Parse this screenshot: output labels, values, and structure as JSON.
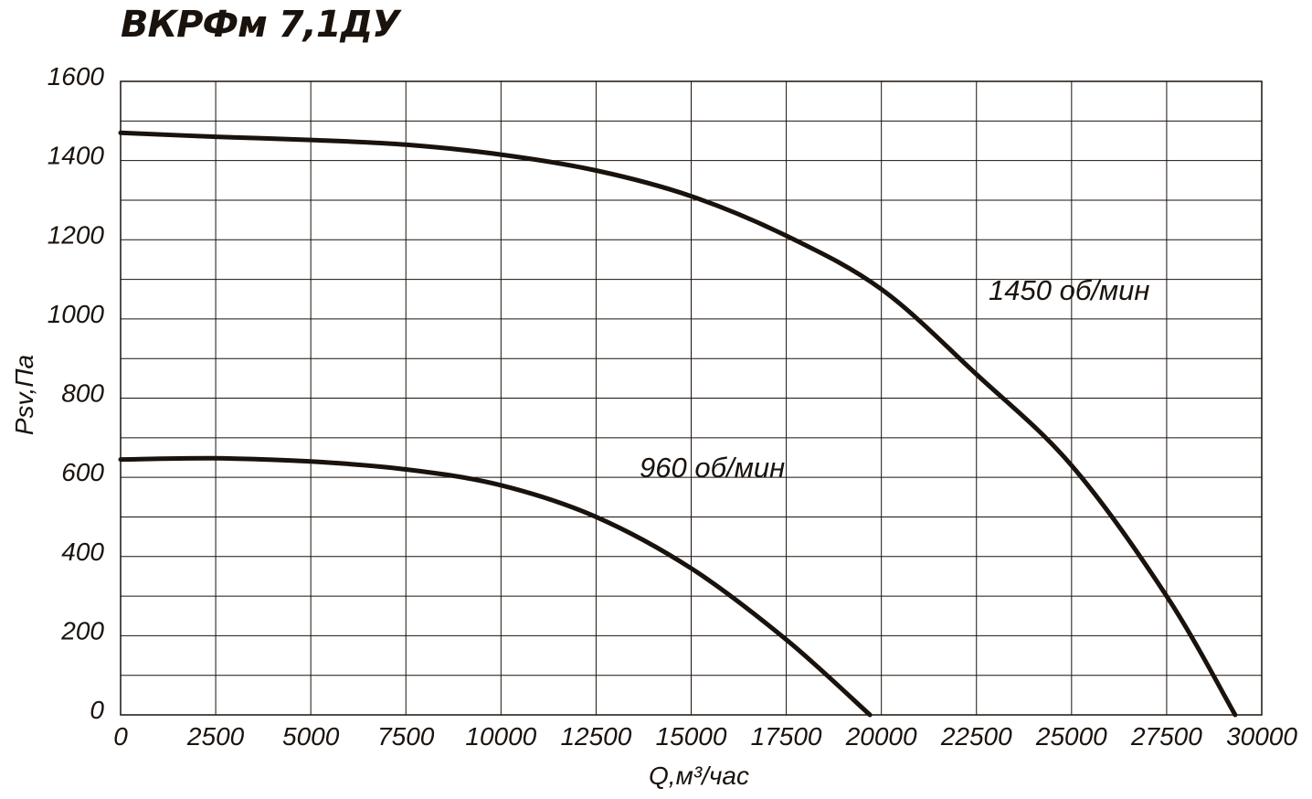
{
  "chart_data": {
    "type": "line",
    "title": "ВКРФм 7,1ДУ",
    "xlabel": "Q,м³/час",
    "ylabel": "Psv,Па",
    "xlim": [
      0,
      30000
    ],
    "ylim": [
      0,
      1600
    ],
    "x_ticks": [
      0,
      2500,
      5000,
      7500,
      10000,
      12500,
      15000,
      17500,
      20000,
      22500,
      25000,
      27500,
      30000
    ],
    "y_ticks": [
      0,
      200,
      400,
      600,
      800,
      1000,
      1200,
      1400,
      1600
    ],
    "grid": true,
    "series": [
      {
        "name": "1450 об/мин",
        "color": "#1a120c",
        "x": [
          0,
          2500,
          5000,
          7500,
          10000,
          12500,
          15000,
          17500,
          20000,
          22500,
          25000,
          27500,
          29300
        ],
        "y": [
          1470,
          1460,
          1452,
          1440,
          1415,
          1375,
          1310,
          1210,
          1075,
          860,
          630,
          300,
          0
        ]
      },
      {
        "name": "960 об/мин",
        "color": "#1a120c",
        "x": [
          0,
          2500,
          5000,
          7500,
          10000,
          12500,
          15000,
          17500,
          19700
        ],
        "y": [
          645,
          648,
          640,
          620,
          580,
          500,
          370,
          190,
          0
        ]
      }
    ]
  }
}
